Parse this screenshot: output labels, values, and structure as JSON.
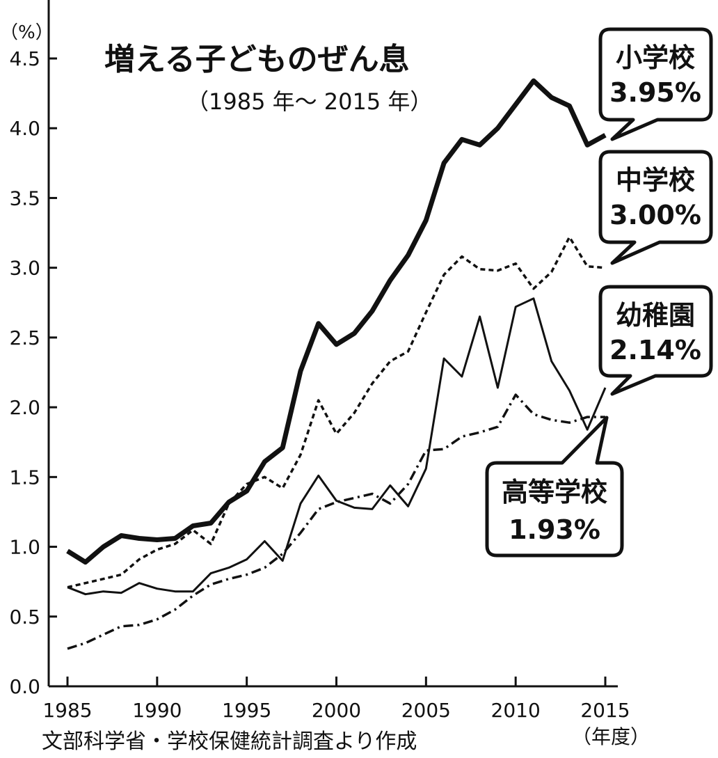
{
  "chart_data": {
    "type": "line",
    "title": "増える子どものぜん息",
    "subtitle": "（1985 年〜 2015 年）",
    "ylabel": "（%）",
    "xlabel": "（年度）",
    "source": "文部科学省・学校保健統計調査より作成",
    "xlim": [
      1985,
      2015
    ],
    "ylim": [
      0,
      4.5
    ],
    "x_ticks": [
      "1985",
      "1990",
      "1995",
      "2000",
      "2005",
      "2010",
      "2015"
    ],
    "y_ticks": [
      "0.0",
      "0.5",
      "1.0",
      "1.5",
      "2.0",
      "2.5",
      "3.0",
      "3.5",
      "4.0",
      "4.5"
    ],
    "grid": false,
    "x": [
      1985,
      1986,
      1987,
      1988,
      1989,
      1990,
      1991,
      1992,
      1993,
      1994,
      1995,
      1996,
      1997,
      1998,
      1999,
      2000,
      2001,
      2002,
      2003,
      2004,
      2005,
      2006,
      2007,
      2008,
      2009,
      2010,
      2011,
      2012,
      2013,
      2014,
      2015
    ],
    "series": [
      {
        "name": "小学校",
        "label": "3.95%",
        "style": "thick-solid",
        "values": [
          0.97,
          0.89,
          1.0,
          1.08,
          1.06,
          1.05,
          1.06,
          1.15,
          1.17,
          1.32,
          1.4,
          1.61,
          1.71,
          2.26,
          2.6,
          2.45,
          2.53,
          2.69,
          2.91,
          3.09,
          3.34,
          3.75,
          3.92,
          3.88,
          4.0,
          4.17,
          4.34,
          4.22,
          4.16,
          3.88,
          3.95
        ]
      },
      {
        "name": "中学校",
        "label": "3.00%",
        "style": "dotted",
        "values": [
          0.71,
          0.74,
          0.77,
          0.8,
          0.91,
          0.98,
          1.02,
          1.12,
          1.02,
          1.31,
          1.45,
          1.5,
          1.42,
          1.66,
          2.05,
          1.81,
          1.96,
          2.17,
          2.33,
          2.4,
          2.68,
          2.95,
          3.08,
          2.99,
          2.98,
          3.03,
          2.85,
          2.97,
          3.22,
          3.01,
          3.0
        ]
      },
      {
        "name": "幼稚園",
        "label": "2.14%",
        "style": "thin-solid",
        "values": [
          0.71,
          0.66,
          0.68,
          0.67,
          0.74,
          0.7,
          0.68,
          0.68,
          0.81,
          0.85,
          0.91,
          1.04,
          0.9,
          1.31,
          1.51,
          1.33,
          1.28,
          1.27,
          1.44,
          1.29,
          1.56,
          2.35,
          2.22,
          2.65,
          2.14,
          2.72,
          2.78,
          2.33,
          2.12,
          1.84,
          2.14
        ]
      },
      {
        "name": "高等学校",
        "label": "1.93%",
        "style": "dash-dot",
        "values": [
          0.27,
          0.31,
          0.37,
          0.43,
          0.44,
          0.48,
          0.55,
          0.65,
          0.73,
          0.77,
          0.8,
          0.85,
          0.95,
          1.1,
          1.27,
          1.32,
          1.35,
          1.38,
          1.31,
          1.45,
          1.69,
          1.7,
          1.79,
          1.82,
          1.86,
          2.09,
          1.95,
          1.91,
          1.89,
          1.93,
          1.93
        ]
      }
    ]
  }
}
